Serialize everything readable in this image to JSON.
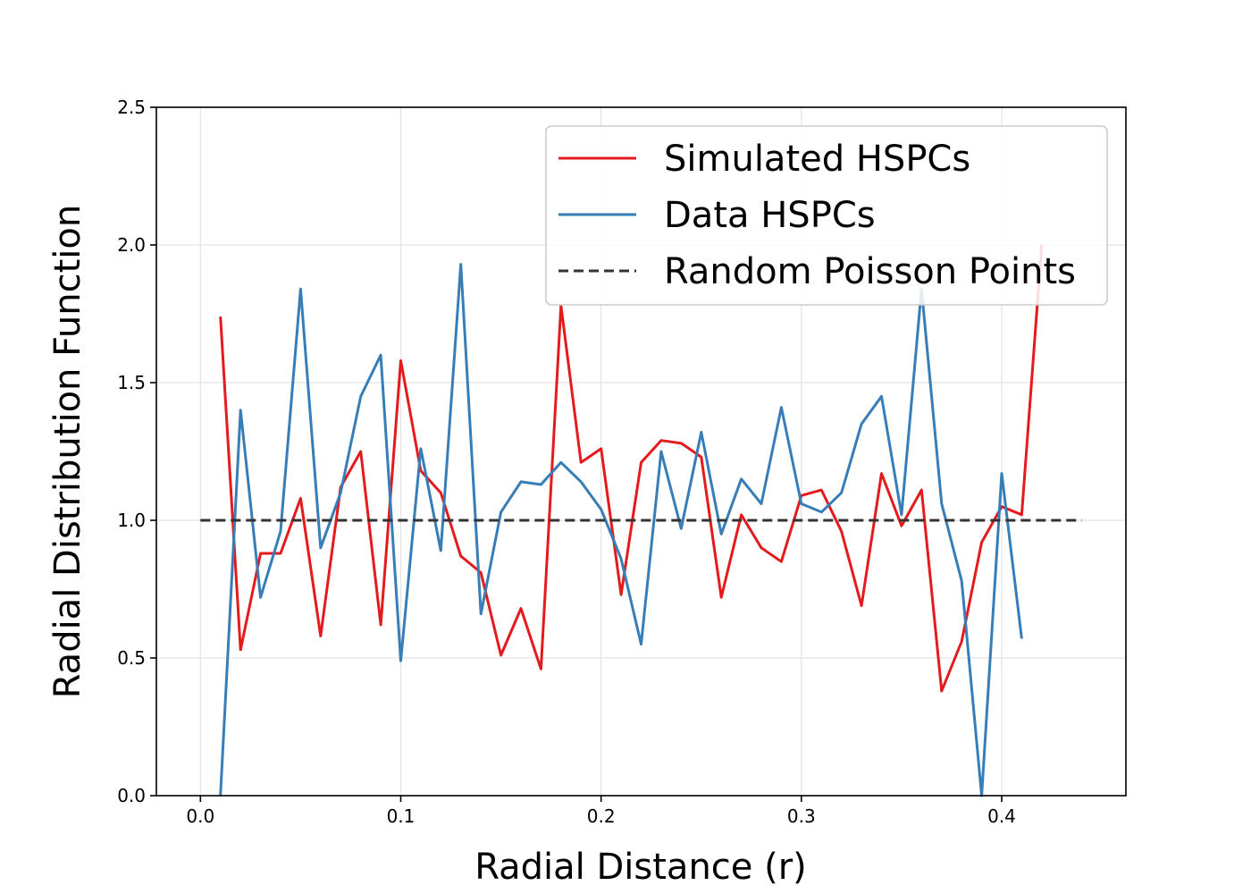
{
  "chart_data": {
    "type": "line",
    "xlabel": "Radial Distance (r)",
    "ylabel": "Radial Distribution Function",
    "xlim": [
      -0.022,
      0.462
    ],
    "ylim": [
      0,
      2.5
    ],
    "xticks": [
      0.0,
      0.1,
      0.2,
      0.3,
      0.4
    ],
    "xtick_labels": [
      "0.0",
      "0.1",
      "0.2",
      "0.3",
      "0.4"
    ],
    "yticks": [
      0.0,
      0.5,
      1.0,
      1.5,
      2.0,
      2.5
    ],
    "ytick_labels": [
      "0.0",
      "0.5",
      "1.0",
      "1.5",
      "2.0",
      "2.5"
    ],
    "grid": true,
    "legend_position": "top-right",
    "series": [
      {
        "name": "Simulated HSPCs",
        "color": "#e41a1c",
        "style": "solid",
        "x": [
          0.01,
          0.02,
          0.03,
          0.04,
          0.05,
          0.06,
          0.07,
          0.08,
          0.09,
          0.1,
          0.11,
          0.12,
          0.13,
          0.14,
          0.15,
          0.16,
          0.17,
          0.18,
          0.19,
          0.2,
          0.21,
          0.22,
          0.23,
          0.24,
          0.25,
          0.26,
          0.27,
          0.28,
          0.29,
          0.3,
          0.31,
          0.32,
          0.33,
          0.34,
          0.35,
          0.36,
          0.37,
          0.38,
          0.39,
          0.4,
          0.41,
          0.42
        ],
        "y": [
          1.74,
          0.53,
          0.88,
          0.88,
          1.08,
          0.58,
          1.12,
          1.25,
          0.62,
          1.58,
          1.18,
          1.1,
          0.87,
          0.81,
          0.51,
          0.68,
          0.46,
          1.78,
          1.21,
          1.26,
          0.73,
          1.21,
          1.29,
          1.28,
          1.23,
          0.72,
          1.02,
          0.9,
          0.85,
          1.09,
          1.11,
          0.96,
          0.69,
          1.17,
          0.98,
          1.11,
          0.38,
          0.56,
          0.92,
          1.05,
          1.02,
          2.0
        ]
      },
      {
        "name": "Data HSPCs",
        "color": "#377eb8",
        "style": "solid",
        "x": [
          0.01,
          0.02,
          0.03,
          0.04,
          0.05,
          0.06,
          0.07,
          0.08,
          0.09,
          0.1,
          0.11,
          0.12,
          0.13,
          0.14,
          0.15,
          0.16,
          0.17,
          0.18,
          0.19,
          0.2,
          0.21,
          0.22,
          0.23,
          0.24,
          0.25,
          0.26,
          0.27,
          0.28,
          0.29,
          0.3,
          0.31,
          0.32,
          0.33,
          0.34,
          0.35,
          0.36,
          0.37,
          0.38,
          0.39,
          0.4,
          0.41
        ],
        "y": [
          0.0,
          1.4,
          0.72,
          0.96,
          1.84,
          0.9,
          1.1,
          1.45,
          1.6,
          0.49,
          1.26,
          0.89,
          1.93,
          0.66,
          1.03,
          1.14,
          1.13,
          1.21,
          1.14,
          1.04,
          0.86,
          0.55,
          1.25,
          0.97,
          1.32,
          0.95,
          1.15,
          1.06,
          1.41,
          1.06,
          1.03,
          1.1,
          1.35,
          1.45,
          1.02,
          1.84,
          1.06,
          0.78,
          0.0,
          1.17,
          0.57
        ]
      },
      {
        "name": "Random Poisson Points",
        "color": "#333333",
        "style": "dashed",
        "x": [
          0.0,
          0.44
        ],
        "y": [
          1.0,
          1.0
        ]
      }
    ]
  }
}
